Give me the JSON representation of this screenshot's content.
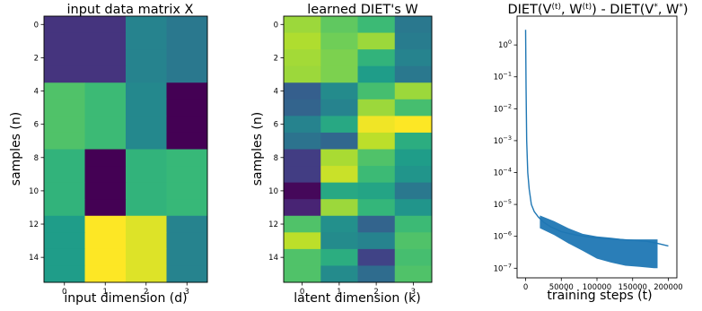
{
  "chart_data": [
    {
      "type": "heatmap",
      "title": "input data matrix X",
      "xlabel": "input dimension (d)",
      "ylabel": "samples (n)",
      "x_ticks": [
        "0",
        "1",
        "2",
        "3"
      ],
      "y_ticks": [
        "0",
        "2",
        "4",
        "6",
        "8",
        "10",
        "12",
        "14"
      ],
      "colormap": "viridis",
      "rows": 16,
      "cols": 4,
      "values": [
        [
          0.15,
          0.15,
          0.45,
          0.4
        ],
        [
          0.15,
          0.15,
          0.45,
          0.4
        ],
        [
          0.15,
          0.15,
          0.45,
          0.4
        ],
        [
          0.15,
          0.15,
          0.45,
          0.4
        ],
        [
          0.72,
          0.68,
          0.47,
          0.0
        ],
        [
          0.72,
          0.68,
          0.47,
          0.0
        ],
        [
          0.72,
          0.68,
          0.47,
          0.0
        ],
        [
          0.72,
          0.68,
          0.47,
          0.0
        ],
        [
          0.65,
          0.0,
          0.65,
          0.67
        ],
        [
          0.65,
          0.0,
          0.65,
          0.67
        ],
        [
          0.65,
          0.0,
          0.65,
          0.67
        ],
        [
          0.65,
          0.0,
          0.65,
          0.67
        ],
        [
          0.55,
          1.0,
          0.95,
          0.45
        ],
        [
          0.55,
          1.0,
          0.95,
          0.45
        ],
        [
          0.55,
          1.0,
          0.95,
          0.45
        ],
        [
          0.55,
          1.0,
          0.95,
          0.45
        ]
      ]
    },
    {
      "type": "heatmap",
      "title": "learned DIET's W",
      "xlabel": "latent dimension (k)",
      "ylabel": "samples (n)",
      "x_ticks": [
        "0",
        "1",
        "2",
        "3"
      ],
      "y_ticks": [
        "0",
        "2",
        "4",
        "6",
        "8",
        "10",
        "12",
        "14"
      ],
      "colormap": "viridis",
      "rows": 16,
      "cols": 4,
      "values": [
        [
          0.85,
          0.75,
          0.68,
          0.4
        ],
        [
          0.88,
          0.78,
          0.85,
          0.42
        ],
        [
          0.86,
          0.8,
          0.65,
          0.45
        ],
        [
          0.85,
          0.8,
          0.55,
          0.4
        ],
        [
          0.3,
          0.48,
          0.7,
          0.85
        ],
        [
          0.32,
          0.45,
          0.85,
          0.7
        ],
        [
          0.45,
          0.6,
          0.98,
          1.0
        ],
        [
          0.38,
          0.33,
          0.9,
          0.62
        ],
        [
          0.18,
          0.87,
          0.72,
          0.55
        ],
        [
          0.18,
          0.92,
          0.68,
          0.52
        ],
        [
          0.02,
          0.6,
          0.58,
          0.4
        ],
        [
          0.1,
          0.85,
          0.66,
          0.52
        ],
        [
          0.72,
          0.5,
          0.32,
          0.68
        ],
        [
          0.9,
          0.48,
          0.45,
          0.72
        ],
        [
          0.72,
          0.62,
          0.2,
          0.7
        ],
        [
          0.72,
          0.48,
          0.35,
          0.72
        ]
      ]
    },
    {
      "type": "line",
      "title": "DIET(V^(t), W^(t)) - DIET(V^*, W^*)",
      "title_parts": [
        "DIET(V",
        "(t)",
        ", W",
        "(t)",
        ") - DIET(V",
        "*",
        ", W",
        "*",
        ")"
      ],
      "xlabel": "training steps (t)",
      "ylabel": "",
      "x_ticks": [
        "0",
        "50000",
        "100000",
        "150000",
        "200000"
      ],
      "xlim": [
        -12000,
        212000
      ],
      "y_scale": "log",
      "ylim": [
        5e-08,
        8
      ],
      "y_tick_values": [
        1,
        0.1,
        0.01,
        0.001,
        0.0001,
        1e-05,
        1e-06,
        1e-07
      ],
      "y_tick_bases": [
        "10",
        "10",
        "10",
        "10",
        "10",
        "10",
        "10",
        "10"
      ],
      "y_tick_exponents": [
        "0",
        "−1",
        "−2",
        "−3",
        "−4",
        "−5",
        "−6",
        "−7"
      ],
      "color": "#1f77b4",
      "series": [
        {
          "x": [
            0,
            600,
            1500,
            3000,
            5000,
            8000,
            12000,
            18000,
            25000,
            35000,
            50000,
            70000,
            90000,
            110000,
            130000,
            150000,
            170000,
            185000,
            200000
          ],
          "y": [
            3.0,
            0.05,
            0.001,
            0.0001,
            3e-05,
            1e-05,
            6e-06,
            4e-06,
            2.8e-06,
            2e-06,
            1.4e-06,
            1.1e-06,
            9.5e-07,
            8.5e-07,
            8e-07,
            7.5e-07,
            7e-07,
            6e-07,
            5e-07
          ]
        }
      ],
      "noise_band": {
        "x": [
          20000,
          40000,
          60000,
          80000,
          100000,
          120000,
          140000,
          160000,
          180000,
          185000
        ],
        "low": [
          1.8e-06,
          1.1e-06,
          6e-07,
          3.5e-07,
          2e-07,
          1.5e-07,
          1.2e-07,
          1.1e-07,
          1e-07,
          1e-07
        ],
        "high": [
          4.5e-06,
          3e-06,
          1.8e-06,
          1.2e-06,
          1e-06,
          9e-07,
          8e-07,
          8e-07,
          8e-07,
          8e-07
        ]
      }
    }
  ]
}
